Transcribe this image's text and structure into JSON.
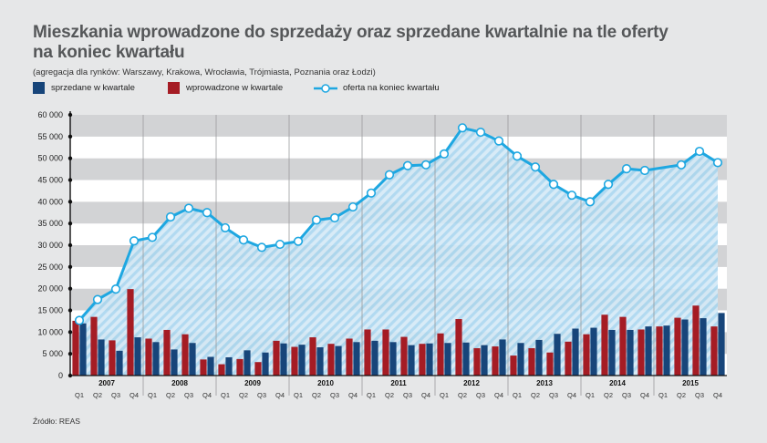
{
  "title": "Mieszkania wprowadzone do sprzedaży oraz sprzedane kwartalnie na tle oferty na koniec kwartału",
  "subtitle": "(agregacja dla rynków: Warszawy, Krakowa, Wrocławia, Trójmiasta, Poznania oraz Łodzi)",
  "source": "Źródło: REAS",
  "legend": [
    {
      "label": "sprzedane w kwartale",
      "color": "#17457a"
    },
    {
      "label": "wprowadzone w kwartale",
      "color": "#a51c24"
    },
    {
      "label": "oferta na koniec kwartału",
      "color": "#1ea7e1"
    }
  ],
  "chart_data": {
    "type": "bar",
    "years": [
      "2007",
      "2008",
      "2009",
      "2010",
      "2011",
      "2012",
      "2013",
      "2014",
      "2015"
    ],
    "quarters": [
      "Q1",
      "Q2",
      "Q3",
      "Q4"
    ],
    "ylim": [
      0,
      60000
    ],
    "yticks": [
      "0",
      "5 000",
      "10 000",
      "15 000",
      "20 000",
      "25 000",
      "30 000",
      "35 000",
      "40 000",
      "45 000",
      "50 000",
      "55 000",
      "60 000"
    ],
    "grid": true,
    "series": [
      {
        "name": "sprzedane w kwartale",
        "color": "#17457a",
        "kind": "bar",
        "values": [
          12000,
          8300,
          5700,
          8800,
          7700,
          6000,
          7500,
          4300,
          4200,
          5800,
          5300,
          7400,
          7100,
          6500,
          6800,
          7700,
          8000,
          7700,
          7000,
          7400,
          7500,
          7600,
          7000,
          8300,
          7500,
          8200,
          9600,
          10800,
          11000,
          10500,
          10500,
          11300,
          11500,
          12900,
          13200,
          14400
        ]
      },
      {
        "name": "wprowadzone w kwartale",
        "color": "#a51c24",
        "kind": "bar",
        "values": [
          12600,
          13500,
          8100,
          19900,
          8500,
          10500,
          9500,
          3700,
          2600,
          3800,
          3100,
          8000,
          6600,
          8800,
          7300,
          8500,
          10600,
          10600,
          8900,
          7300,
          9700,
          13000,
          6300,
          6700,
          4600,
          6300,
          5300,
          7800,
          9500,
          14000,
          13500,
          10600,
          11300,
          13300,
          16100,
          11300
        ]
      },
      {
        "name": "oferta na koniec kwartału",
        "color": "#1ea7e1",
        "kind": "line",
        "values": [
          12700,
          17500,
          19900,
          31000,
          31800,
          36500,
          38500,
          37500,
          34000,
          31200,
          29500,
          30200,
          30900,
          35800,
          36300,
          38800,
          42000,
          46200,
          48300,
          48500,
          51000,
          57000,
          56000,
          54000,
          50500,
          48000,
          44000,
          41500,
          40000,
          44000,
          47600,
          47200,
          null,
          48500,
          51600,
          49000
        ]
      }
    ]
  }
}
